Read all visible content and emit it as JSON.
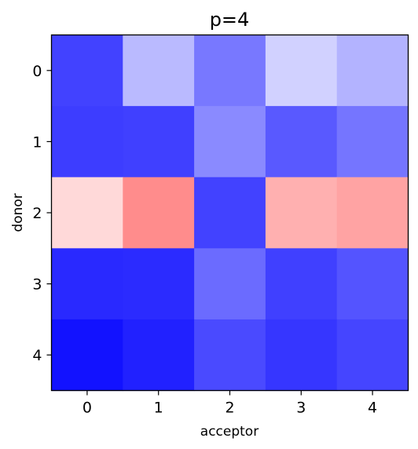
{
  "chart_data": {
    "type": "heatmap",
    "title": "p=4",
    "xlabel": "acceptor",
    "ylabel": "donor",
    "x_categories": [
      "0",
      "1",
      "2",
      "3",
      "4"
    ],
    "y_categories": [
      "0",
      "1",
      "2",
      "3",
      "4"
    ],
    "colormap": "bwr",
    "color_low": "#0000ff",
    "color_mid": "#ffffff",
    "color_high": "#ff0000",
    "value_range": [
      -1,
      1
    ],
    "values": [
      [
        -0.74,
        -0.27,
        -0.53,
        -0.18,
        -0.3
      ],
      [
        -0.76,
        -0.75,
        -0.46,
        -0.65,
        -0.54
      ],
      [
        0.15,
        0.45,
        -0.74,
        0.31,
        0.36
      ],
      [
        -0.84,
        -0.83,
        -0.58,
        -0.75,
        -0.67
      ],
      [
        -0.93,
        -0.87,
        -0.71,
        -0.79,
        -0.73
      ]
    ],
    "grid": false,
    "legend": "none"
  }
}
